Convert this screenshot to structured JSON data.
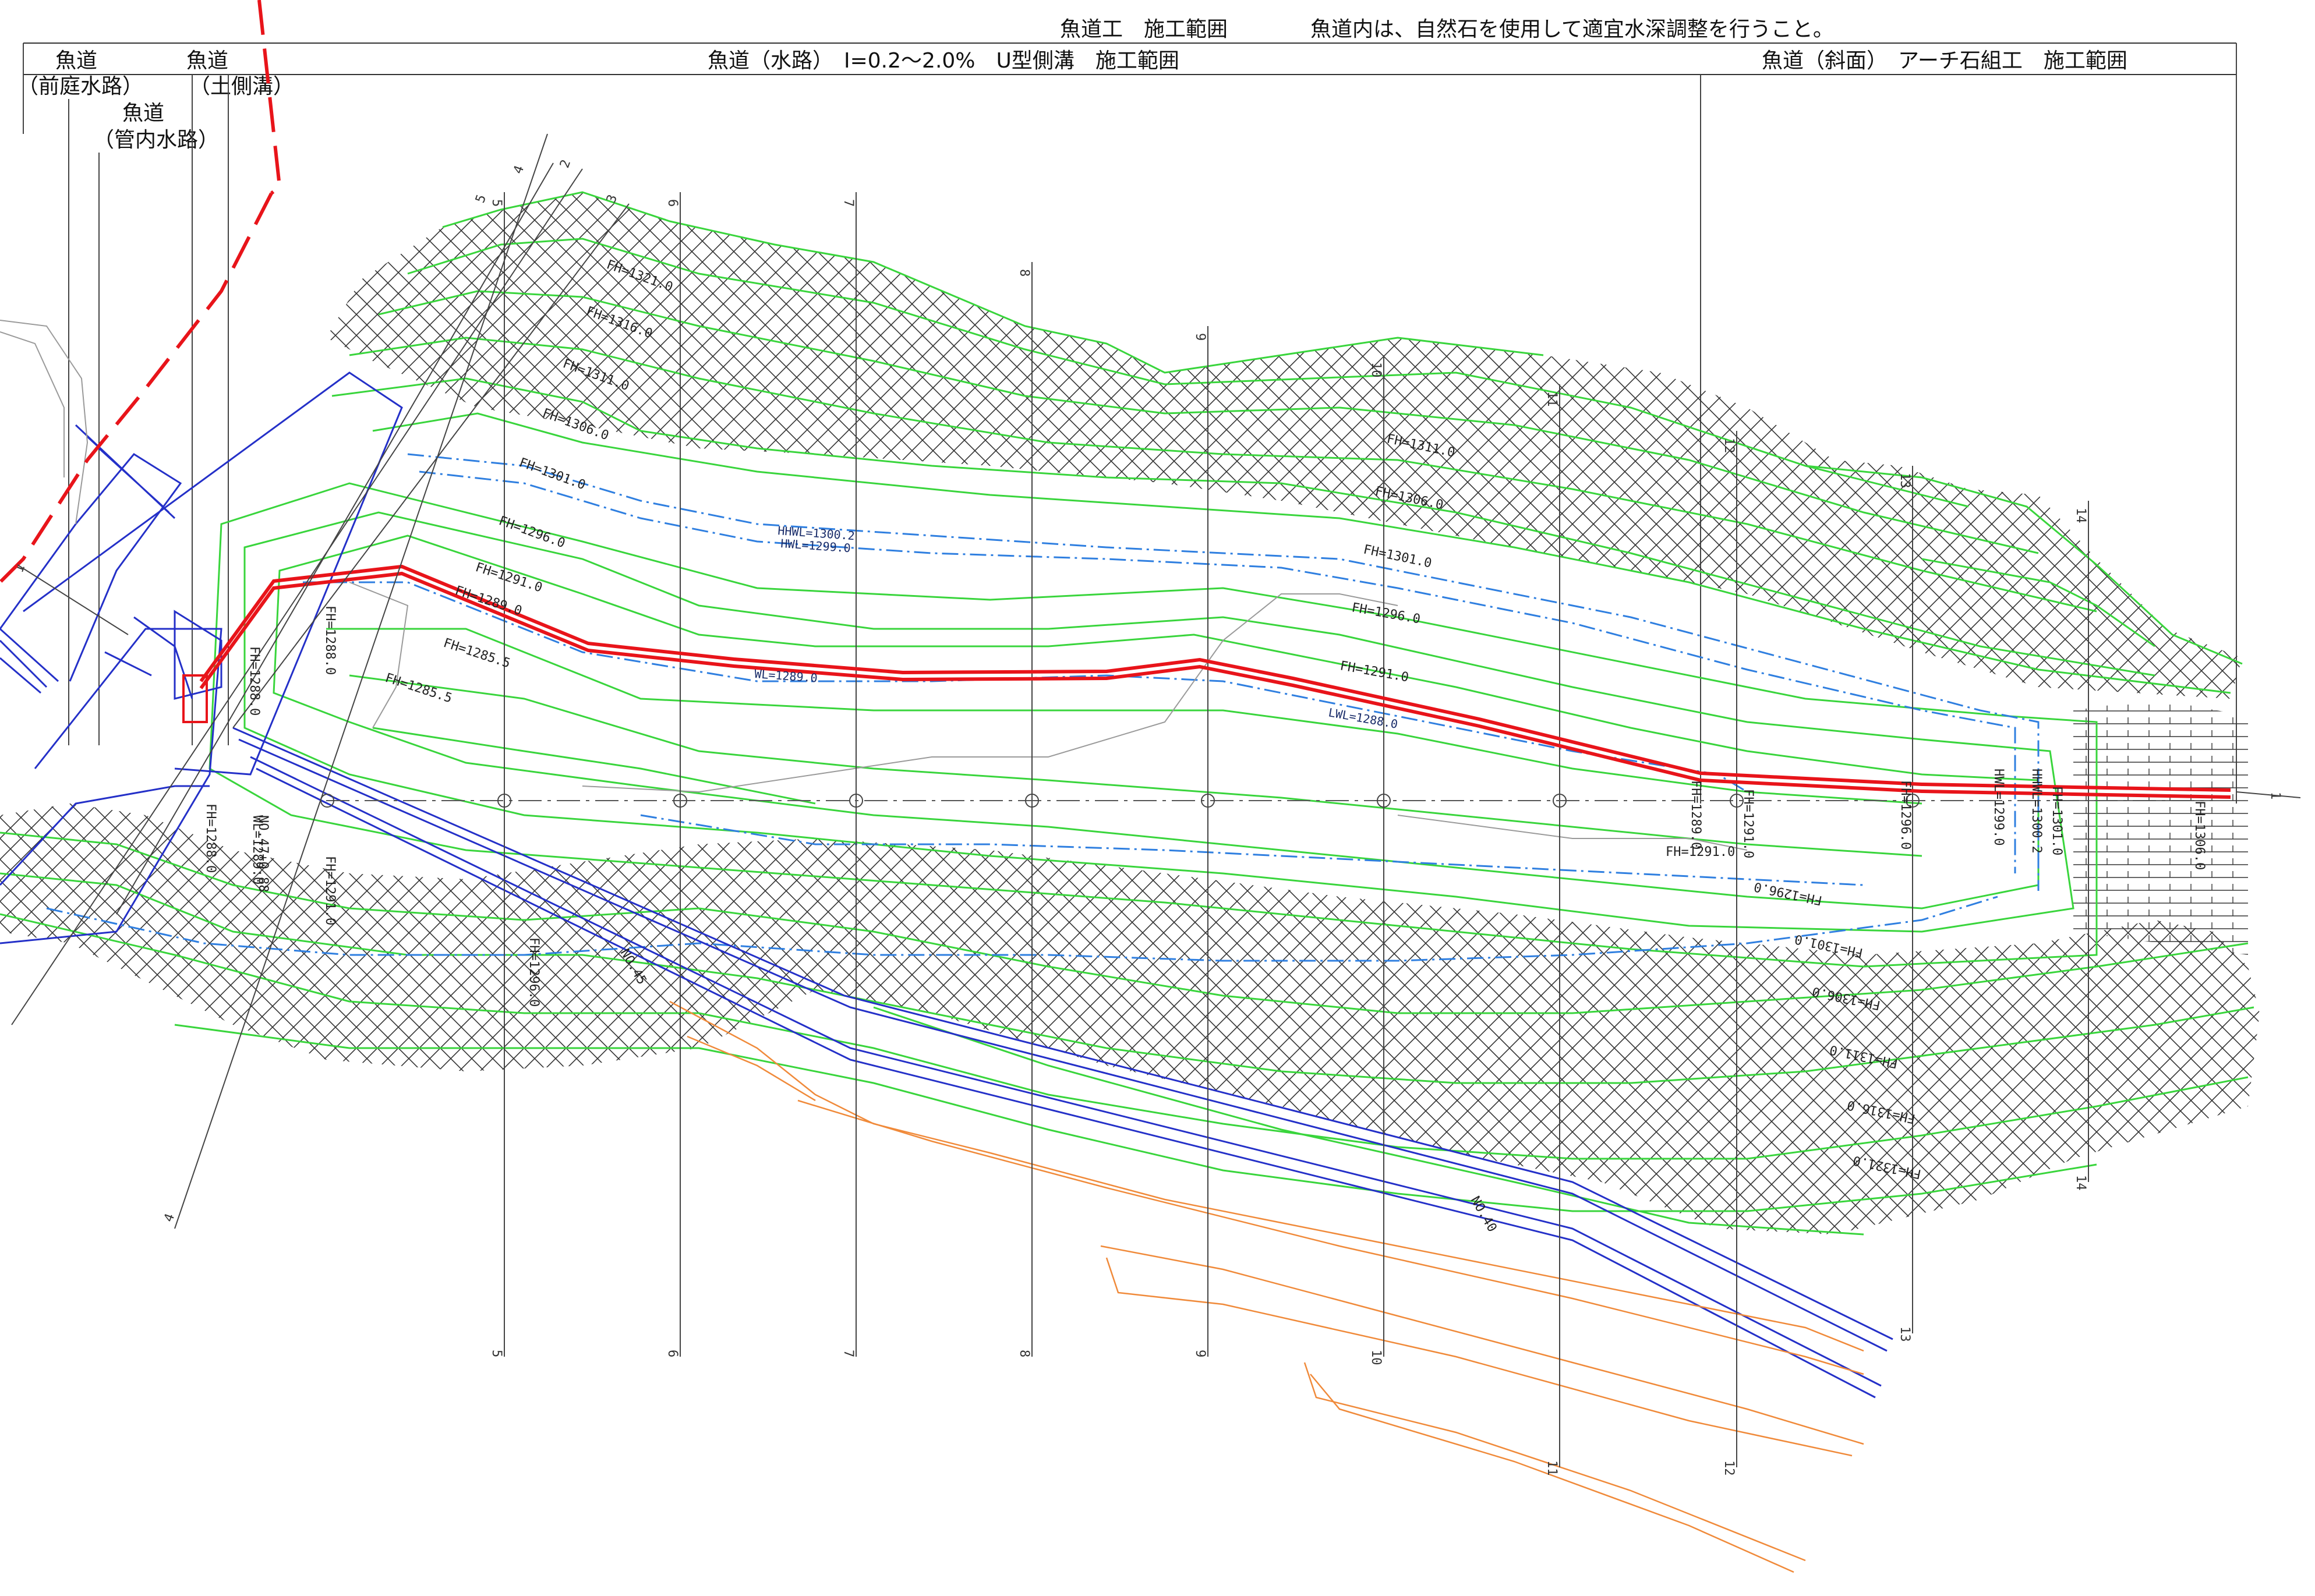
{
  "header": {
    "fishway_work_range": "魚道工　施工範囲",
    "note": "魚道内は、自然石を使用して適宜水深調整を行うこと。",
    "channel_range": "魚道（水路）　I=0.2～2.0%　U型側溝　施工範囲",
    "slope_range": "魚道（斜面）　アーチ石組工　施工範囲"
  },
  "left_labels": {
    "fishway_a": "魚道",
    "front_garden": "（前庭水路）",
    "fishway_b": "魚道",
    "earth_ditch": "（土側溝）",
    "fishway_c": "魚道",
    "pipe_channel": "（管内水路）"
  },
  "contours_top": [
    "FH=1321.0",
    "FH=1316.0",
    "FH=1311.0",
    "FH=1306.0",
    "FH=1301.0",
    "FH=1296.0",
    "FH=1291.0",
    "FH=1289.0",
    "FH=1285.5",
    "FH=1285.5"
  ],
  "contours_right": [
    "FH=1311.0",
    "FH=1306.0",
    "FH=1301.0",
    "FH=1296.0",
    "FH=1291.0"
  ],
  "contours_bottom": [
    "FH=1291.0",
    "FH=1296.0",
    "FH=1301.0",
    "FH=1306.0",
    "FH=1311.0",
    "FH=1316.0",
    "FH=1321.0"
  ],
  "contours_left": [
    "FH=1288.0",
    "FH=1288.0",
    "FH=1288.0",
    "WL=1289.0",
    "FH=1291.0",
    "FH=1296.0"
  ],
  "contours_vertical": [
    "FH=1289.0",
    "FH=1291.0",
    "FH=1296.0",
    "HWL=1299.0",
    "HHWL=1300.2",
    "FH=1301.0",
    "FH=1306.0"
  ],
  "water_levels": {
    "hhwl": "HHWL=1300.2",
    "hwl": "HWL=1299.0",
    "wl": "WL=1289.0",
    "lwl": "LWL=1288.0"
  },
  "survey_marks": [
    "NO.47+0.88",
    "NO.45",
    "NO.40"
  ],
  "sections": [
    "1",
    "2",
    "3",
    "4",
    "5",
    "6",
    "7",
    "8",
    "9",
    "10",
    "11",
    "12",
    "13",
    "14"
  ],
  "colors": {
    "contour": "#39d53c",
    "structure": "#2430c8",
    "water_level": "#2f7fe0",
    "fishway_center": "#e8141a",
    "existing_ground": "#f08a3a"
  }
}
